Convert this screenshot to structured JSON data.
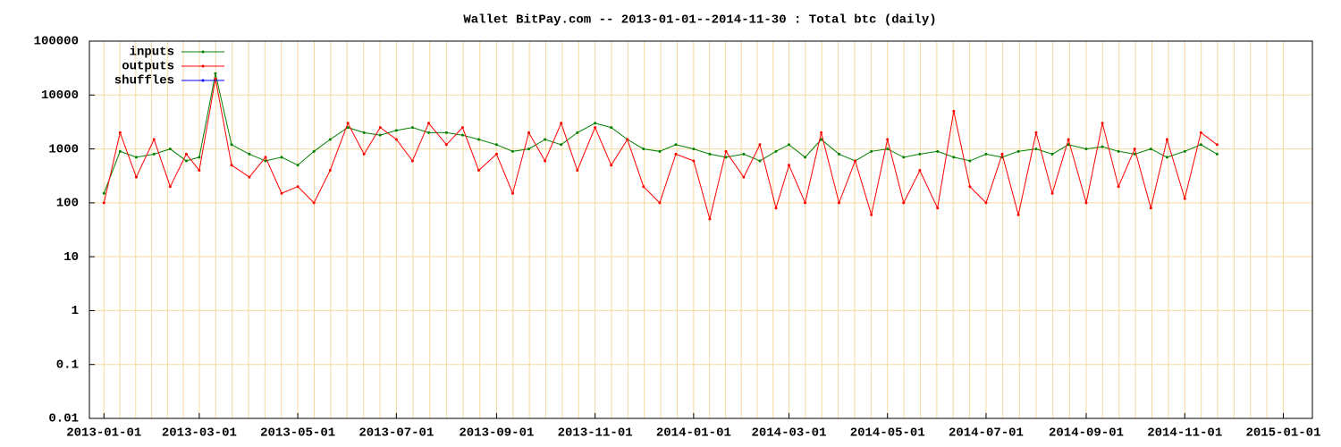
{
  "chart_data": {
    "type": "line",
    "title": "Wallet BitPay.com -- 2013-01-01--2014-11-30 : Total btc (daily)",
    "x": [
      "2013-01-01",
      "2013-01-11",
      "2013-01-21",
      "2013-02-01",
      "2013-02-11",
      "2013-02-21",
      "2013-03-01",
      "2013-03-11",
      "2013-03-21",
      "2013-04-01",
      "2013-04-11",
      "2013-04-21",
      "2013-05-01",
      "2013-05-11",
      "2013-05-21",
      "2013-06-01",
      "2013-06-11",
      "2013-06-21",
      "2013-07-01",
      "2013-07-11",
      "2013-07-21",
      "2013-08-01",
      "2013-08-11",
      "2013-08-21",
      "2013-09-01",
      "2013-09-11",
      "2013-09-21",
      "2013-10-01",
      "2013-10-11",
      "2013-10-21",
      "2013-11-01",
      "2013-11-11",
      "2013-11-21",
      "2013-12-01",
      "2013-12-11",
      "2013-12-21",
      "2014-01-01",
      "2014-01-11",
      "2014-01-21",
      "2014-02-01",
      "2014-02-11",
      "2014-02-21",
      "2014-03-01",
      "2014-03-11",
      "2014-03-21",
      "2014-04-01",
      "2014-04-11",
      "2014-04-21",
      "2014-05-01",
      "2014-05-11",
      "2014-05-21",
      "2014-06-01",
      "2014-06-11",
      "2014-06-21",
      "2014-07-01",
      "2014-07-11",
      "2014-07-21",
      "2014-08-01",
      "2014-08-11",
      "2014-08-21",
      "2014-09-01",
      "2014-09-11",
      "2014-09-21",
      "2014-10-01",
      "2014-10-11",
      "2014-10-21",
      "2014-11-01",
      "2014-11-11",
      "2014-11-21"
    ],
    "series": [
      {
        "name": "inputs",
        "color": "#008000",
        "values": [
          150,
          900,
          700,
          800,
          1000,
          600,
          700,
          25000,
          1200,
          800,
          600,
          700,
          500,
          900,
          1500,
          2500,
          2000,
          1800,
          2200,
          2500,
          2000,
          2000,
          1800,
          1500,
          1200,
          900,
          1000,
          1500,
          1200,
          2000,
          3000,
          2500,
          1500,
          1000,
          900,
          1200,
          1000,
          800,
          700,
          800,
          600,
          900,
          1200,
          700,
          1500,
          800,
          600,
          900,
          1000,
          700,
          800,
          900,
          700,
          600,
          800,
          700,
          900,
          1000,
          800,
          1200,
          1000,
          1100,
          900,
          800,
          1000,
          700,
          900,
          1200,
          800
        ]
      },
      {
        "name": "outputs",
        "color": "#ff0000",
        "values": [
          100,
          2000,
          300,
          1500,
          200,
          800,
          400,
          20000,
          500,
          300,
          700,
          150,
          200,
          100,
          400,
          3000,
          800,
          2500,
          1500,
          600,
          3000,
          1200,
          2500,
          400,
          800,
          150,
          2000,
          600,
          3000,
          400,
          2500,
          500,
          1500,
          200,
          100,
          800,
          600,
          50,
          900,
          300,
          1200,
          80,
          500,
          100,
          2000,
          100,
          600,
          60,
          1500,
          100,
          400,
          80,
          5000,
          200,
          100,
          800,
          60,
          2000,
          150,
          1500,
          100,
          3000,
          200,
          1000,
          80,
          1500,
          120,
          2000,
          1200
        ]
      },
      {
        "name": "shuffles",
        "color": "#0000ff",
        "values": [
          null,
          null,
          null,
          null,
          null,
          null,
          null,
          null,
          null,
          null,
          null,
          null,
          null,
          null,
          null,
          null,
          null,
          null,
          null,
          null,
          null,
          null,
          null,
          null,
          null,
          null,
          null,
          null,
          null,
          null,
          null,
          null,
          null,
          null,
          null,
          null,
          null,
          null,
          null,
          null,
          null,
          null,
          null,
          null,
          null,
          null,
          null,
          null,
          null,
          null,
          null,
          null,
          null,
          null,
          null,
          null,
          null,
          null,
          null,
          null,
          null,
          null,
          null,
          null,
          null,
          null,
          null,
          null,
          null
        ]
      }
    ],
    "log_y": true,
    "ylim": [
      0.01,
      100000
    ],
    "yticks": [
      0.01,
      0.1,
      1,
      10,
      100,
      1000,
      10000,
      100000
    ],
    "xlim": [
      "2012-12-23",
      "2015-01-19"
    ],
    "xticks": [
      "2013-01-01",
      "2013-03-01",
      "2013-05-01",
      "2013-07-01",
      "2013-09-01",
      "2013-11-01",
      "2014-01-01",
      "2014-03-01",
      "2014-05-01",
      "2014-07-01",
      "2014-09-01",
      "2014-11-01",
      "2015-01-01"
    ],
    "grid": true,
    "legend": "top-left"
  }
}
